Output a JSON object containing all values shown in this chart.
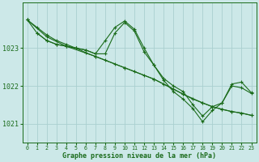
{
  "title": "Graphe pression niveau de la mer (hPa)",
  "background_color": "#cce8e8",
  "grid_color": "#aad0d0",
  "line_color": "#1a6b1a",
  "xlim": [
    -0.5,
    23.5
  ],
  "ylim": [
    1020.5,
    1024.2
  ],
  "yticks": [
    1021,
    1022,
    1023
  ],
  "xticks": [
    0,
    1,
    2,
    3,
    4,
    5,
    6,
    7,
    8,
    9,
    10,
    11,
    12,
    13,
    14,
    15,
    16,
    17,
    18,
    19,
    20,
    21,
    22,
    23
  ],
  "series": [
    {
      "x": [
        0,
        1,
        2,
        3,
        4,
        5,
        6,
        7,
        8,
        9,
        10,
        11,
        12,
        13,
        14,
        15,
        16,
        17,
        18,
        19,
        20,
        21,
        22,
        23
      ],
      "y": [
        1023.75,
        1023.55,
        1023.35,
        1023.2,
        1023.1,
        1023.0,
        1022.88,
        1022.78,
        1022.68,
        1022.58,
        1022.48,
        1022.38,
        1022.28,
        1022.18,
        1022.05,
        1021.92,
        1021.78,
        1021.65,
        1021.55,
        1021.45,
        1021.38,
        1021.32,
        1021.28,
        1021.22
      ]
    },
    {
      "x": [
        0,
        1,
        2,
        3,
        4,
        5,
        6,
        7,
        8,
        9,
        10,
        11,
        12,
        13,
        14,
        15,
        16,
        17,
        18,
        19,
        20,
        21,
        22,
        23
      ],
      "y": [
        1023.75,
        1023.4,
        1023.2,
        1023.1,
        1023.05,
        1023.0,
        1022.95,
        1022.85,
        1023.2,
        1023.55,
        1023.72,
        1023.5,
        1023.0,
        1022.55,
        1022.15,
        1021.85,
        1021.65,
        1021.4,
        1021.05,
        1021.35,
        1021.55,
        1022.0,
        1021.95,
        1021.8
      ]
    },
    {
      "x": [
        1,
        2,
        3,
        4,
        5,
        6,
        7,
        8,
        9,
        10,
        11,
        12,
        13,
        14,
        15,
        16,
        17,
        18,
        19,
        20,
        21,
        22,
        23
      ],
      "y": [
        1023.4,
        1023.2,
        1023.1,
        1023.05,
        1023.0,
        1022.95,
        1022.85,
        1022.85,
        1023.4,
        1023.68,
        1023.45,
        1022.9,
        1022.55,
        1022.2,
        1022.0,
        1021.85,
        1021.5,
        1021.2,
        1021.45,
        1021.55,
        1022.05,
        1022.1,
        1021.82
      ]
    },
    {
      "x": [
        0,
        2,
        4,
        7,
        10,
        13,
        16,
        18,
        19,
        20,
        21,
        22,
        23
      ],
      "y": [
        1023.75,
        1023.3,
        1023.05,
        1022.78,
        1022.48,
        1022.18,
        1021.78,
        1021.55,
        1021.45,
        1021.38,
        1021.32,
        1021.28,
        1021.22
      ]
    }
  ]
}
